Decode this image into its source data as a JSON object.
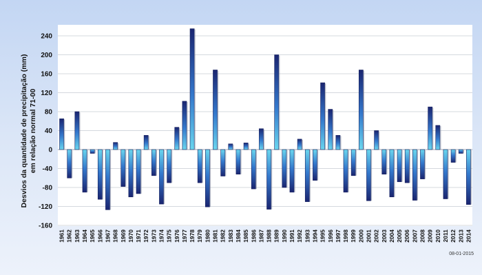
{
  "chart_data": {
    "type": "bar",
    "ylabel_line1": "Desvios da quantidade de precipitação (mm)",
    "ylabel_line2": "em relação normal 71-00",
    "yticks": [
      240,
      200,
      160,
      120,
      80,
      40,
      0,
      -40,
      -80,
      -120,
      -160
    ],
    "ylim": [
      -160,
      255
    ],
    "grid": true,
    "categories": [
      "1961",
      "1962",
      "1963",
      "1964",
      "1965",
      "1966",
      "1967",
      "1968",
      "1969",
      "1970",
      "1971",
      "1972",
      "1973",
      "1974",
      "1975",
      "1976",
      "1977",
      "1978",
      "1979",
      "1980",
      "1981",
      "1982",
      "1983",
      "1984",
      "1985",
      "1986",
      "1987",
      "1988",
      "1989",
      "1990",
      "1991",
      "1992",
      "1993",
      "1994",
      "1995",
      "1996",
      "1997",
      "1998",
      "1999",
      "2000",
      "2001",
      "2002",
      "2003",
      "2004",
      "2005",
      "2006",
      "2007",
      "2008",
      "2009",
      "2010",
      "2011",
      "2012",
      "2013",
      "2014"
    ],
    "values": [
      65,
      -60,
      80,
      -90,
      -8,
      -105,
      -127,
      15,
      -78,
      -100,
      -93,
      30,
      -55,
      -115,
      -70,
      47,
      102,
      255,
      -70,
      -121,
      168,
      -56,
      12,
      -52,
      14,
      -83,
      44,
      -126,
      200,
      -80,
      -90,
      22,
      -110,
      -65,
      141,
      85,
      30,
      -90,
      -55,
      168,
      -108,
      40,
      -52,
      -100,
      -68,
      -70,
      -107,
      -62,
      90,
      51,
      -104,
      -27,
      -8,
      -116
    ]
  },
  "footer": {
    "date": "08-01-2015"
  }
}
